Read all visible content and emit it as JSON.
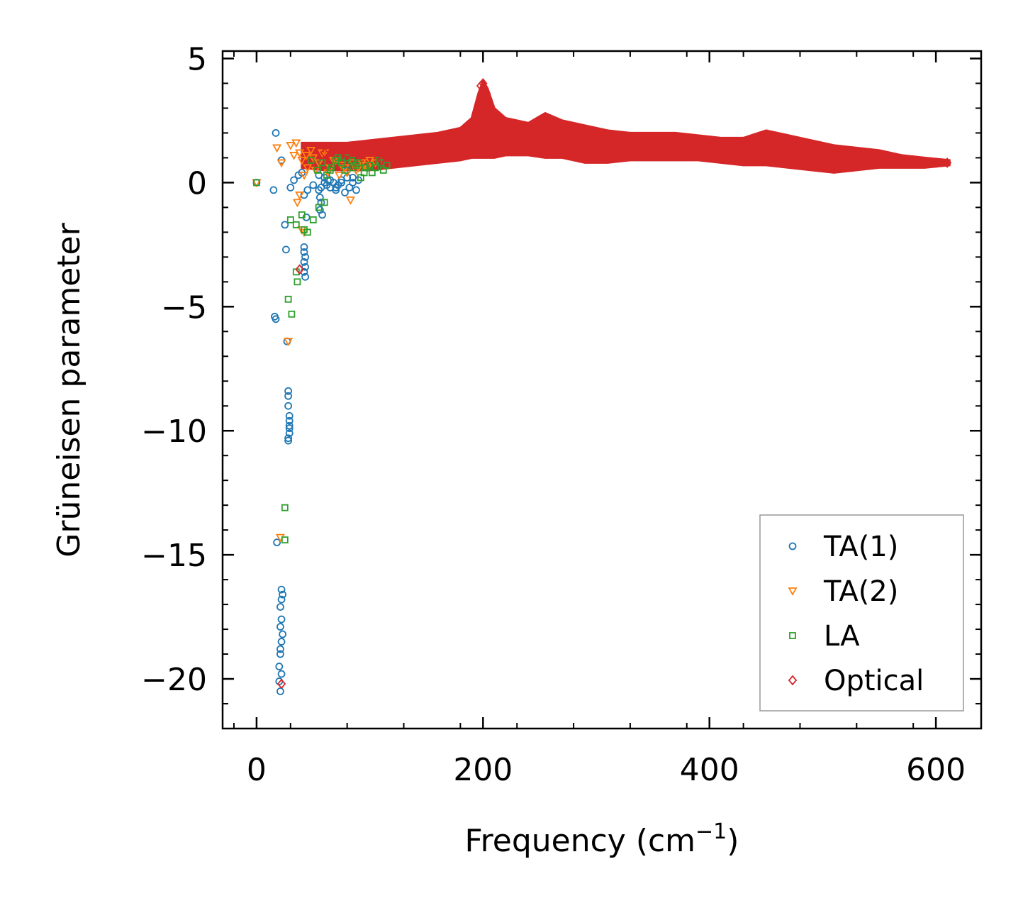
{
  "chart_data": {
    "type": "scatter",
    "title": "",
    "xlabel": "Frequency (cm",
    "xlabel_sup": "−1",
    "xlabel_end": ")",
    "ylabel": "Grüneisen parameter",
    "xlim": [
      -30,
      640
    ],
    "ylim": [
      -22,
      5.3
    ],
    "xticks": [
      0,
      200,
      400,
      600
    ],
    "xtick_labels": [
      "0",
      "200",
      "400",
      "600"
    ],
    "yticks": [
      5,
      0,
      -5,
      -10,
      -15,
      -20
    ],
    "ytick_labels": [
      "5",
      "0",
      "−5",
      "−10",
      "−15",
      "−20"
    ],
    "grid": false,
    "legend_position": "lower-right",
    "series": [
      {
        "name": "TA(1)",
        "marker": "circle",
        "color": "#1f77b4",
        "x": [
          0,
          15,
          17,
          22,
          25,
          26,
          30,
          33,
          37,
          40,
          42,
          45,
          50,
          55,
          60,
          65,
          70,
          75,
          80,
          85,
          16,
          17,
          27,
          28,
          28,
          28,
          29,
          29,
          29,
          29,
          28,
          28,
          29,
          18,
          22,
          23,
          22,
          21,
          22,
          21,
          23,
          22,
          21,
          21,
          20,
          22,
          20,
          21,
          42,
          42,
          43,
          42,
          43,
          42,
          43,
          44,
          55,
          56,
          57,
          56,
          58,
          57,
          60,
          62,
          63,
          65,
          68,
          70,
          72,
          75,
          78,
          80,
          82,
          85,
          88,
          90
        ],
        "y": [
          0,
          -0.3,
          2.0,
          0.9,
          -1.7,
          -2.7,
          -0.2,
          0.1,
          0.3,
          0.4,
          -0.5,
          -0.3,
          -0.1,
          0.3,
          0.2,
          0.1,
          -0.2,
          0.0,
          0.5,
          0.2,
          -5.4,
          -5.5,
          -6.4,
          -8.4,
          -8.6,
          -9.0,
          -9.4,
          -9.6,
          -9.9,
          -10.1,
          -10.3,
          -10.4,
          -9.8,
          -14.5,
          -16.4,
          -16.6,
          -16.8,
          -17.1,
          -17.6,
          -17.9,
          -18.2,
          -18.5,
          -18.8,
          -19.0,
          -19.5,
          -19.8,
          -20.1,
          -20.5,
          -2.6,
          -2.8,
          -3.0,
          -3.2,
          -3.4,
          -3.6,
          -3.8,
          -1.4,
          -0.3,
          -0.6,
          -0.8,
          -1.1,
          -1.3,
          -0.2,
          0.0,
          -0.1,
          0.1,
          -0.2,
          0.0,
          -0.3,
          -0.1,
          0.1,
          -0.4,
          0.2,
          -0.2,
          0.0,
          -0.3,
          0.1
        ]
      },
      {
        "name": "TA(2)",
        "marker": "triangle-down",
        "color": "#ff7f0e",
        "x": [
          0,
          18,
          22,
          30,
          33,
          35,
          38,
          40,
          42,
          45,
          48,
          50,
          55,
          60,
          65,
          70,
          75,
          80,
          85,
          90,
          95,
          100,
          105,
          28,
          21,
          40,
          42,
          36,
          38,
          44,
          52,
          58,
          63,
          68,
          73,
          78,
          83,
          88,
          93,
          98
        ],
        "y": [
          0,
          1.4,
          0.8,
          1.5,
          1.1,
          1.6,
          1.2,
          0.9,
          0.3,
          0.6,
          1.3,
          1.0,
          0.8,
          1.2,
          0.6,
          0.9,
          0.7,
          0.4,
          0.8,
          0.6,
          0.7,
          0.9,
          0.8,
          -6.4,
          -14.3,
          -1.9,
          -2.0,
          -0.8,
          -0.5,
          1.1,
          0.5,
          1.2,
          0.4,
          0.9,
          0.3,
          0.6,
          -0.7,
          0.5,
          0.8,
          0.6
        ]
      },
      {
        "name": "LA",
        "marker": "square",
        "color": "#2ca02c",
        "x": [
          0,
          30,
          35,
          40,
          42,
          45,
          35,
          36,
          28,
          31,
          25,
          25,
          50,
          55,
          60,
          65,
          70,
          75,
          80,
          85,
          90,
          95,
          100,
          105,
          110,
          115,
          112,
          108,
          102,
          96,
          92,
          88,
          84,
          78,
          72,
          66,
          62,
          58,
          54,
          48
        ],
        "y": [
          0,
          -1.5,
          -1.7,
          -1.3,
          -1.9,
          -2.0,
          -3.6,
          -4.0,
          -4.7,
          -5.3,
          -13.1,
          -14.4,
          -1.5,
          -1.0,
          -0.8,
          0.5,
          0.9,
          0.8,
          1.0,
          0.6,
          0.8,
          0.4,
          0.7,
          0.6,
          0.8,
          0.7,
          0.5,
          0.9,
          0.4,
          0.6,
          0.2,
          0.7,
          0.9,
          0.5,
          1.0,
          0.6,
          0.3,
          0.8,
          0.5,
          0.9
        ]
      },
      {
        "name": "Optical",
        "marker": "diamond",
        "color": "#d62728",
        "x": [
          22,
          38,
          60,
          80,
          95,
          110,
          125,
          140,
          155,
          170,
          185,
          195,
          198,
          200,
          203,
          206,
          210,
          220,
          235,
          250,
          255,
          265,
          280,
          290,
          300,
          315,
          330,
          345,
          360,
          375,
          390,
          405,
          420,
          440,
          455,
          465,
          480,
          500,
          520,
          540,
          560,
          580,
          600,
          610
        ],
        "y": [
          -20.2,
          -3.5,
          1.2,
          1.1,
          1.3,
          0.9,
          1.2,
          1.4,
          1.5,
          1.4,
          1.7,
          2.2,
          3.9,
          4.0,
          3.6,
          2.9,
          2.2,
          1.9,
          1.8,
          1.7,
          2.6,
          2.2,
          1.9,
          1.6,
          1.5,
          1.5,
          1.4,
          1.4,
          1.4,
          1.3,
          1.3,
          1.3,
          1.2,
          1.2,
          1.5,
          1.6,
          1.3,
          1.1,
          1.0,
          1.0,
          1.0,
          0.9,
          0.8,
          0.8
        ]
      }
    ],
    "optical_band": {
      "x": [
        40,
        60,
        80,
        100,
        120,
        140,
        160,
        180,
        190,
        196,
        200,
        204,
        210,
        220,
        240,
        255,
        270,
        290,
        310,
        330,
        350,
        370,
        390,
        410,
        430,
        450,
        470,
        490,
        510,
        530,
        550,
        570,
        590,
        612
      ],
      "upper": [
        1.6,
        1.6,
        1.6,
        1.7,
        1.8,
        1.9,
        2.0,
        2.2,
        2.6,
        3.6,
        4.1,
        3.8,
        3.0,
        2.6,
        2.4,
        2.8,
        2.5,
        2.3,
        2.1,
        2.0,
        2.0,
        2.0,
        1.9,
        1.8,
        1.8,
        2.1,
        1.9,
        1.7,
        1.5,
        1.4,
        1.3,
        1.1,
        1.0,
        0.9
      ],
      "lower": [
        0.6,
        0.5,
        0.5,
        0.5,
        0.6,
        0.7,
        0.8,
        0.9,
        1.0,
        1.0,
        1.0,
        1.0,
        1.0,
        1.1,
        1.1,
        1.0,
        1.0,
        0.8,
        0.8,
        0.9,
        0.9,
        0.9,
        0.9,
        0.8,
        0.7,
        0.7,
        0.6,
        0.5,
        0.4,
        0.5,
        0.6,
        0.6,
        0.6,
        0.7
      ]
    }
  }
}
